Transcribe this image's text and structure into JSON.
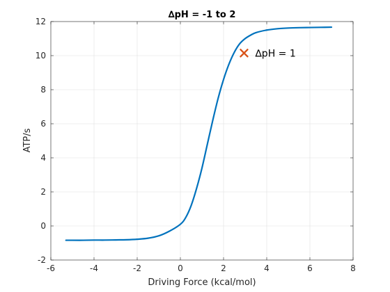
{
  "chart_data": {
    "type": "line",
    "title": "∆pH = -1 to 2",
    "xlabel": "Driving Force (kcal/mol)",
    "ylabel": "ATP/s",
    "xlim": [
      -6,
      8
    ],
    "ylim": [
      -2,
      12
    ],
    "xticks": [
      "-6",
      "-4",
      "-2",
      "0",
      "2",
      "4",
      "6",
      "8"
    ],
    "yticks": [
      "-2",
      "0",
      "2",
      "4",
      "6",
      "8",
      "10",
      "12"
    ],
    "grid": true,
    "series": [
      {
        "color": "#0072bd",
        "x": [
          -5.3,
          -5.0,
          -4.5,
          -4.0,
          -3.5,
          -3.0,
          -2.5,
          -2.0,
          -1.5,
          -1.0,
          -0.5,
          0.0,
          0.25,
          0.5,
          0.75,
          1.0,
          1.25,
          1.5,
          1.75,
          2.0,
          2.25,
          2.5,
          2.75,
          3.0,
          3.25,
          3.5,
          4.0,
          4.5,
          5.0,
          5.5,
          6.0,
          6.5,
          7.0
        ],
        "y": [
          -0.84,
          -0.84,
          -0.84,
          -0.83,
          -0.83,
          -0.82,
          -0.81,
          -0.78,
          -0.72,
          -0.58,
          -0.3,
          0.1,
          0.5,
          1.2,
          2.2,
          3.4,
          4.8,
          6.2,
          7.5,
          8.6,
          9.5,
          10.2,
          10.7,
          11.0,
          11.2,
          11.35,
          11.5,
          11.58,
          11.62,
          11.64,
          11.65,
          11.66,
          11.67
        ]
      }
    ],
    "annotations": [
      {
        "label": "∆pH = 1",
        "x": 2.95,
        "y": 10.15,
        "marker": "x",
        "color": "#d95319"
      }
    ]
  }
}
